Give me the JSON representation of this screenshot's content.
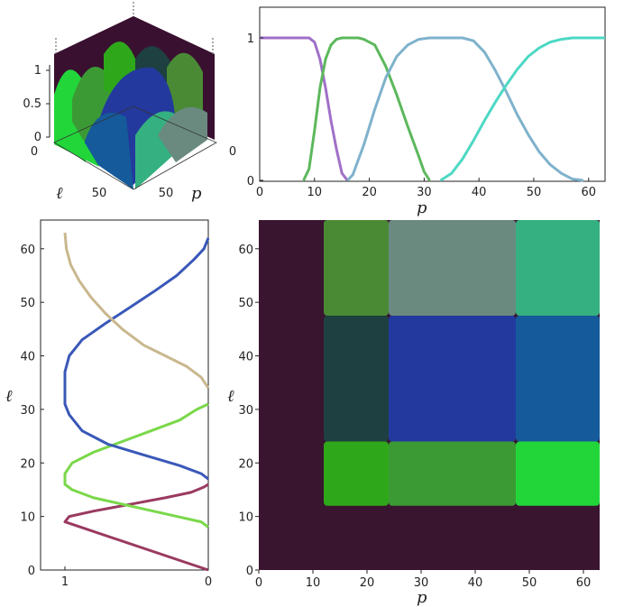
{
  "chart_data": [
    {
      "type": "surface",
      "zlim": [
        0,
        1
      ],
      "z_ticks": [
        "0",
        "0.5",
        "1"
      ],
      "ell_ticks": [
        "0",
        "50"
      ],
      "p_ticks": [
        "0",
        "50"
      ],
      "xlabel": "p",
      "ylabel": "ℓ",
      "colors": [
        "#3a1030",
        "#22d63a",
        "#2ea81a",
        "#3c9a35",
        "#4a8a35",
        "#1e4040",
        "#23399e",
        "#155a9a",
        "#6a8a80",
        "#35b080"
      ]
    },
    {
      "type": "line",
      "xlabel": "p",
      "xlim": [
        0,
        63
      ],
      "ylim": [
        0,
        1
      ],
      "x_ticks": [
        "0",
        "10",
        "20",
        "30",
        "40",
        "50",
        "60"
      ],
      "y_ticks": [
        "0",
        "1"
      ],
      "series": [
        {
          "color": "#a070c8",
          "points": [
            [
              0,
              1
            ],
            [
              9,
              1
            ],
            [
              10,
              0.97
            ],
            [
              11,
              0.85
            ],
            [
              12,
              0.65
            ],
            [
              13,
              0.42
            ],
            [
              14,
              0.22
            ],
            [
              15,
              0.05
            ],
            [
              16,
              0
            ]
          ]
        },
        {
          "color": "#5cb85c",
          "points": [
            [
              8,
              0
            ],
            [
              9,
              0.08
            ],
            [
              10,
              0.35
            ],
            [
              11,
              0.65
            ],
            [
              12,
              0.85
            ],
            [
              13,
              0.95
            ],
            [
              14,
              0.99
            ],
            [
              15,
              1
            ],
            [
              18,
              1
            ],
            [
              19,
              0.99
            ],
            [
              21,
              0.95
            ],
            [
              23,
              0.8
            ],
            [
              25,
              0.6
            ],
            [
              27,
              0.38
            ],
            [
              29,
              0.17
            ],
            [
              30,
              0.06
            ],
            [
              31,
              0
            ]
          ]
        },
        {
          "color": "#7fb2cc",
          "points": [
            [
              16,
              0
            ],
            [
              17,
              0.04
            ],
            [
              19,
              0.25
            ],
            [
              21,
              0.5
            ],
            [
              23,
              0.72
            ],
            [
              25,
              0.87
            ],
            [
              27,
              0.95
            ],
            [
              29,
              0.99
            ],
            [
              31,
              1
            ],
            [
              37,
              1
            ],
            [
              39,
              0.98
            ],
            [
              41,
              0.9
            ],
            [
              43,
              0.77
            ],
            [
              45,
              0.62
            ],
            [
              47,
              0.46
            ],
            [
              49,
              0.32
            ],
            [
              51,
              0.2
            ],
            [
              53,
              0.11
            ],
            [
              55,
              0.05
            ],
            [
              57,
              0.01
            ],
            [
              59,
              0
            ]
          ]
        },
        {
          "color": "#4dd8c4",
          "points": [
            [
              33,
              0
            ],
            [
              35,
              0.05
            ],
            [
              37,
              0.15
            ],
            [
              39,
              0.28
            ],
            [
              41,
              0.42
            ],
            [
              43,
              0.55
            ],
            [
              45,
              0.67
            ],
            [
              47,
              0.78
            ],
            [
              49,
              0.87
            ],
            [
              51,
              0.93
            ],
            [
              53,
              0.97
            ],
            [
              55,
              0.99
            ],
            [
              57,
              1
            ],
            [
              63,
              1
            ]
          ]
        }
      ]
    },
    {
      "type": "line",
      "ylabel": "ℓ",
      "ylim": [
        0,
        63
      ],
      "xlim": [
        1.25,
        0
      ],
      "x_ticks": [
        "1",
        "0"
      ],
      "y_ticks": [
        "0",
        "10",
        "20",
        "30",
        "40",
        "50",
        "60"
      ],
      "series": [
        {
          "color": "#9a3a60",
          "points": [
            [
              0,
              0
            ],
            [
              1,
              9
            ],
            [
              0.97,
              10
            ],
            [
              0.8,
              11
            ],
            [
              0.5,
              12.5
            ],
            [
              0.3,
              13.5
            ],
            [
              0.12,
              14.5
            ],
            [
              0.03,
              15.5
            ],
            [
              0,
              16
            ]
          ]
        },
        {
          "color": "#7ad84a",
          "points": [
            [
              0,
              8
            ],
            [
              0.05,
              9
            ],
            [
              0.3,
              10.5
            ],
            [
              0.55,
              12
            ],
            [
              0.8,
              13.5
            ],
            [
              0.95,
              15
            ],
            [
              1,
              16
            ],
            [
              1,
              18
            ],
            [
              0.95,
              20
            ],
            [
              0.8,
              22
            ],
            [
              0.6,
              24
            ],
            [
              0.4,
              26
            ],
            [
              0.2,
              28
            ],
            [
              0.08,
              30
            ],
            [
              0,
              31
            ]
          ]
        },
        {
          "color": "#3a58b8",
          "points": [
            [
              0,
              17
            ],
            [
              0.05,
              18
            ],
            [
              0.2,
              19.5
            ],
            [
              0.45,
              21.5
            ],
            [
              0.7,
              23.5
            ],
            [
              0.88,
              26
            ],
            [
              0.97,
              29
            ],
            [
              1,
              31
            ],
            [
              1,
              37
            ],
            [
              0.97,
              40
            ],
            [
              0.88,
              43
            ],
            [
              0.72,
              46
            ],
            [
              0.55,
              49
            ],
            [
              0.38,
              52
            ],
            [
              0.22,
              55
            ],
            [
              0.1,
              58
            ],
            [
              0.03,
              60
            ],
            [
              0,
              62
            ]
          ]
        },
        {
          "color": "#c9b88e",
          "points": [
            [
              0,
              34
            ],
            [
              0.05,
              36
            ],
            [
              0.15,
              38
            ],
            [
              0.3,
              40
            ],
            [
              0.45,
              42
            ],
            [
              0.6,
              45
            ],
            [
              0.72,
              48
            ],
            [
              0.82,
              51
            ],
            [
              0.9,
              54
            ],
            [
              0.96,
              57
            ],
            [
              0.99,
              60
            ],
            [
              1,
              63
            ]
          ]
        }
      ]
    },
    {
      "type": "heatmap",
      "xlabel": "p",
      "ylabel": "ℓ",
      "xlim": [
        0,
        63
      ],
      "ylim": [
        0,
        63
      ],
      "x_ticks": [
        "0",
        "10",
        "20",
        "30",
        "40",
        "50",
        "60"
      ],
      "y_ticks": [
        "0",
        "10",
        "20",
        "30",
        "40",
        "50",
        "60"
      ],
      "background": "#3a1530",
      "cells": [
        {
          "p": [
            12,
            24
          ],
          "ell": [
            12,
            24
          ],
          "color": "#2ea81a"
        },
        {
          "p": [
            24,
            47.5
          ],
          "ell": [
            12,
            24
          ],
          "color": "#3c9a35"
        },
        {
          "p": [
            47.5,
            63
          ],
          "ell": [
            12,
            24
          ],
          "color": "#22d63a"
        },
        {
          "p": [
            12,
            24
          ],
          "ell": [
            24,
            47.5
          ],
          "color": "#1e4040"
        },
        {
          "p": [
            24,
            47.5
          ],
          "ell": [
            24,
            47.5
          ],
          "color": "#23399e"
        },
        {
          "p": [
            47.5,
            63
          ],
          "ell": [
            24,
            47.5
          ],
          "color": "#155a9a"
        },
        {
          "p": [
            12,
            24
          ],
          "ell": [
            47.5,
            63
          ],
          "color": "#4a8a35"
        },
        {
          "p": [
            24,
            47.5
          ],
          "ell": [
            47.5,
            63
          ],
          "color": "#6a8a80"
        },
        {
          "p": [
            47.5,
            63
          ],
          "ell": [
            47.5,
            63
          ],
          "color": "#35b080"
        }
      ]
    }
  ]
}
